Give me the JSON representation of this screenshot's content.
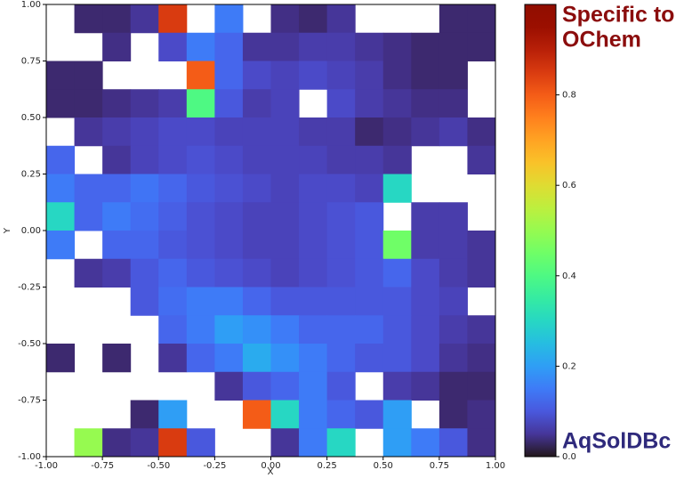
{
  "chart_data": {
    "type": "heatmap",
    "xlabel": "X",
    "ylabel": "Y",
    "xlim": [
      -1.0,
      1.0
    ],
    "ylim": [
      -1.0,
      1.0
    ],
    "xticks": [
      {
        "value": -1.0,
        "label": "-1.00"
      },
      {
        "value": -0.75,
        "label": "-0.75"
      },
      {
        "value": -0.5,
        "label": "-0.50"
      },
      {
        "value": -0.25,
        "label": "-0.25"
      },
      {
        "value": 0,
        "label": "0.00"
      },
      {
        "value": 0.25,
        "label": "0.25"
      },
      {
        "value": 0.5,
        "label": "0.50"
      },
      {
        "value": 0.75,
        "label": "0.75"
      },
      {
        "value": 1.0,
        "label": "1.00"
      }
    ],
    "yticks": [
      {
        "value": -1.0,
        "label": "-1.00"
      },
      {
        "value": -0.75,
        "label": "-0.75"
      },
      {
        "value": -0.5,
        "label": "-0.50"
      },
      {
        "value": -0.25,
        "label": "-0.25"
      },
      {
        "value": 0,
        "label": "0.00"
      },
      {
        "value": 0.25,
        "label": "0.25"
      },
      {
        "value": 0.5,
        "label": "0.50"
      },
      {
        "value": 0.75,
        "label": "0.75"
      },
      {
        "value": 1.0,
        "label": "1.00"
      }
    ],
    "colormap": "turbo",
    "clim": [
      0,
      1.0
    ],
    "cticks": [
      {
        "value": 0,
        "label": "0.0"
      },
      {
        "value": 0.2,
        "label": "0.2"
      },
      {
        "value": 0.4,
        "label": "0.4"
      },
      {
        "value": 0.6,
        "label": "0.6"
      },
      {
        "value": 0.8,
        "label": "0.8"
      }
    ],
    "z": [
      [
        null,
        0.03,
        0.03,
        0.05,
        0.85,
        null,
        0.15,
        null,
        0.04,
        0.03,
        0.05,
        null,
        null,
        null,
        0.03,
        0.03
      ],
      [
        null,
        null,
        0.04,
        null,
        0.08,
        0.15,
        0.12,
        0.05,
        0.05,
        0.06,
        0.06,
        0.05,
        0.04,
        0.03,
        0.03,
        0.03
      ],
      [
        0.03,
        0.03,
        null,
        null,
        null,
        0.8,
        0.12,
        0.08,
        0.07,
        0.08,
        0.07,
        0.06,
        0.04,
        0.03,
        0.03,
        null
      ],
      [
        0.03,
        0.03,
        0.04,
        0.05,
        0.06,
        0.4,
        0.1,
        0.06,
        0.07,
        null,
        0.08,
        0.06,
        0.05,
        0.04,
        0.04,
        null
      ],
      [
        null,
        0.05,
        0.06,
        0.07,
        0.08,
        0.08,
        0.07,
        0.07,
        0.07,
        0.06,
        0.06,
        0.03,
        0.04,
        0.05,
        0.06,
        0.04
      ],
      [
        0.12,
        null,
        0.05,
        0.07,
        0.08,
        0.09,
        0.08,
        0.07,
        0.07,
        0.07,
        0.06,
        0.06,
        0.05,
        null,
        null,
        0.05
      ],
      [
        0.15,
        0.12,
        0.12,
        0.14,
        0.12,
        0.1,
        0.09,
        0.08,
        0.07,
        0.08,
        0.08,
        0.07,
        0.3,
        null,
        null,
        null
      ],
      [
        0.3,
        0.12,
        0.15,
        0.13,
        0.11,
        0.09,
        0.08,
        0.07,
        0.07,
        0.08,
        0.09,
        0.1,
        null,
        0.06,
        0.06,
        null
      ],
      [
        0.15,
        null,
        0.12,
        0.12,
        0.1,
        0.09,
        0.08,
        0.07,
        0.07,
        0.08,
        0.09,
        0.1,
        0.45,
        0.06,
        0.06,
        0.05
      ],
      [
        null,
        0.05,
        0.06,
        0.1,
        0.12,
        0.1,
        0.09,
        0.08,
        0.07,
        0.08,
        0.09,
        0.1,
        0.12,
        0.08,
        0.06,
        0.05
      ],
      [
        null,
        null,
        null,
        0.1,
        0.13,
        0.15,
        0.15,
        0.12,
        0.1,
        0.1,
        0.1,
        0.1,
        0.1,
        0.08,
        0.07,
        null
      ],
      [
        null,
        null,
        null,
        null,
        0.12,
        0.15,
        0.2,
        0.18,
        0.15,
        0.12,
        0.12,
        0.12,
        0.1,
        0.08,
        0.06,
        0.05
      ],
      [
        0.03,
        null,
        0.03,
        null,
        0.05,
        0.12,
        0.15,
        0.22,
        0.18,
        0.15,
        0.12,
        0.1,
        0.1,
        0.08,
        0.05,
        0.04
      ],
      [
        null,
        null,
        null,
        null,
        null,
        null,
        0.05,
        0.1,
        0.12,
        0.15,
        0.1,
        null,
        0.06,
        0.05,
        0.03,
        0.03
      ],
      [
        null,
        null,
        null,
        0.03,
        0.2,
        null,
        null,
        0.8,
        0.3,
        0.15,
        0.12,
        0.1,
        0.2,
        null,
        0.03,
        0.04
      ],
      [
        null,
        0.5,
        0.04,
        0.05,
        0.85,
        0.1,
        null,
        null,
        0.05,
        0.15,
        0.3,
        null,
        0.2,
        0.15,
        0.1,
        0.04
      ]
    ],
    "annotations": [
      {
        "text": "Specific to",
        "color": "#8b0d0d"
      },
      {
        "text": "OChem",
        "color": "#8b0d0d"
      },
      {
        "text": "AqSolDBc",
        "color": "#2f2a7c"
      }
    ]
  }
}
